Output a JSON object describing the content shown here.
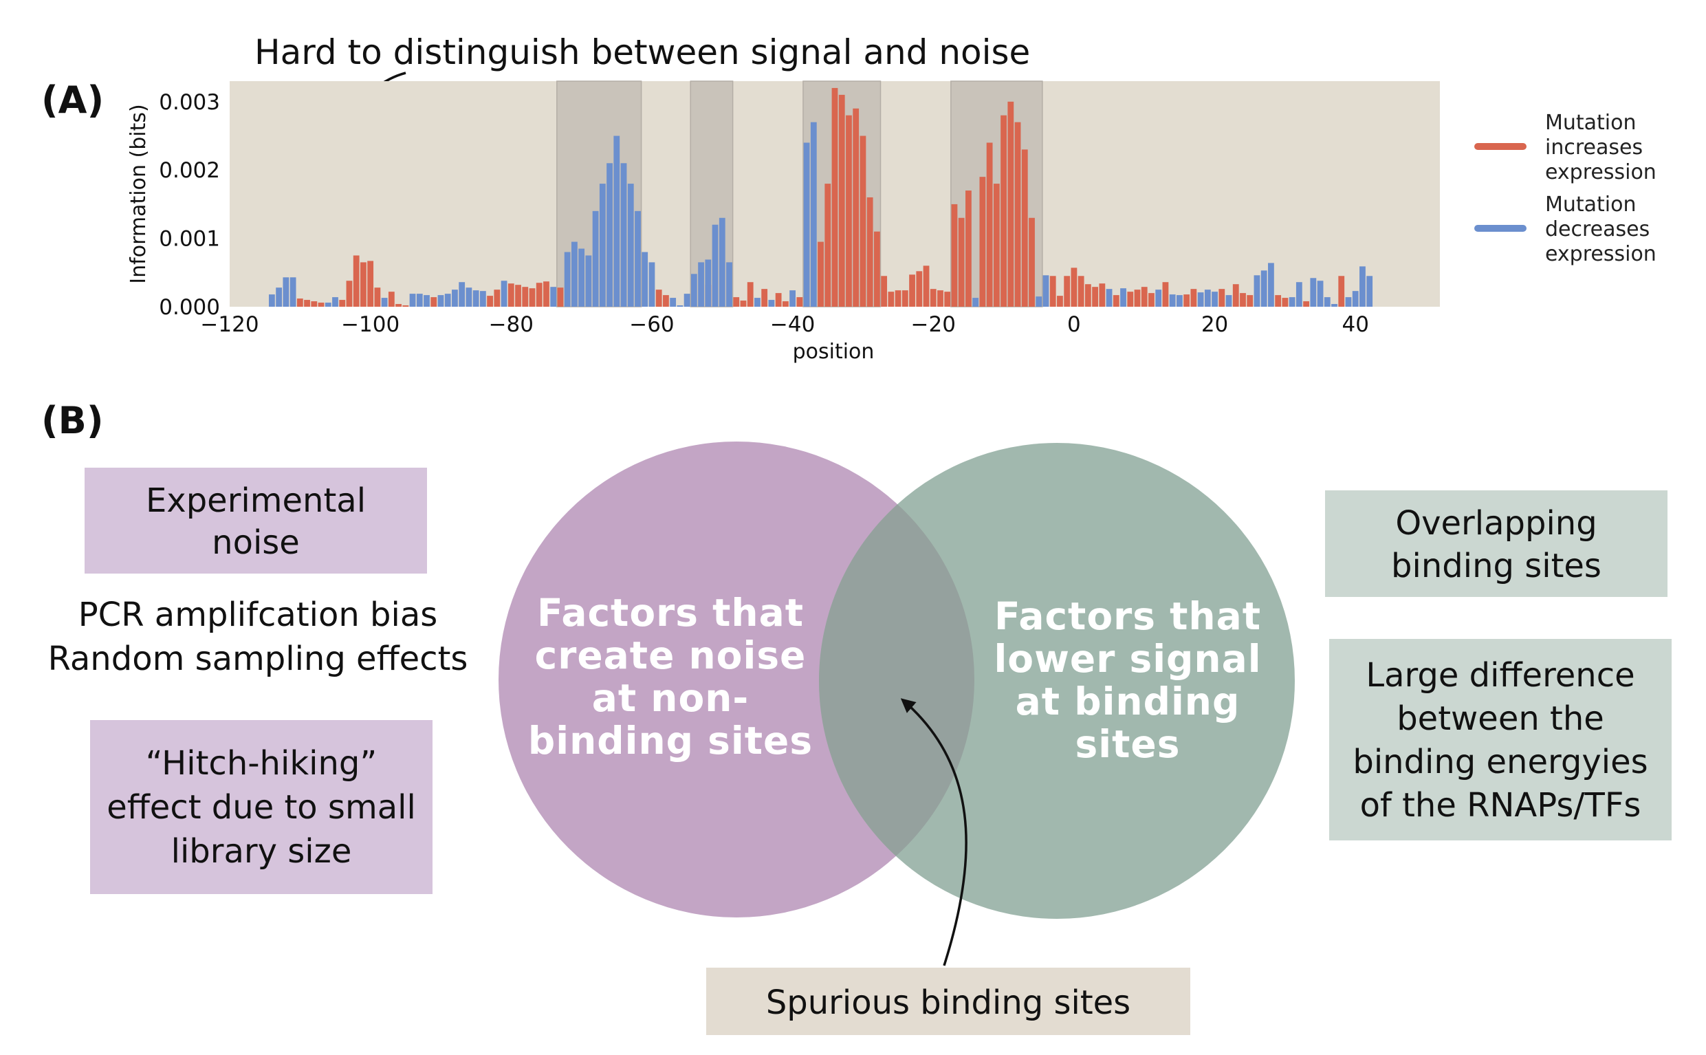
{
  "colors": {
    "increase": "#d9664f",
    "decrease": "#6b8fce",
    "plot_bg": "#e3ddd1",
    "highlight": "#c9c3ba",
    "noise_circle": "#c3a5c5",
    "signal_circle": "#a1b8ae",
    "overlap": "#95a19e",
    "noise_box": "#d6c4dc",
    "signal_box": "#cbd7d1",
    "spurious_box": "#e3dcd1"
  },
  "panel_a": {
    "label": "(A)",
    "annotation": "Hard to distinguish between signal and noise"
  },
  "chart_data": {
    "type": "bar",
    "xlabel": "position",
    "ylabel": "Information (bits)",
    "xlim": [
      -120,
      52
    ],
    "ylim": [
      0,
      0.0033
    ],
    "xticks": [
      -120,
      -100,
      -80,
      -60,
      -40,
      -20,
      0,
      20,
      40
    ],
    "xtick_labels": [
      "−120",
      "−100",
      "−80",
      "−60",
      "−40",
      "−20",
      "0",
      "20",
      "40"
    ],
    "yticks": [
      0.0,
      0.001,
      0.002,
      0.003
    ],
    "ytick_labels": [
      "0.000",
      "0.001",
      "0.002",
      "0.003"
    ],
    "highlighted_regions": [
      [
        -73,
        -62
      ],
      [
        -54,
        -49
      ],
      [
        -38,
        -28
      ],
      [
        -17,
        -5
      ]
    ],
    "legend": {
      "placement": "right",
      "entries": [
        {
          "label": [
            "Mutation",
            "increases",
            "expression"
          ],
          "color": "#d9664f"
        },
        {
          "label": [
            "Mutation",
            "decreases",
            "expression"
          ],
          "color": "#6b8fce"
        }
      ]
    },
    "series": [
      {
        "name": "Mutation increases expression",
        "color": "#d9664f",
        "x": [
          -110,
          -109,
          -108,
          -107,
          -104,
          -103,
          -102,
          -101,
          -100,
          -99,
          -97,
          -96,
          -95,
          -91,
          -83,
          -82,
          -80,
          -79,
          -78,
          -77,
          -76,
          -75,
          -73,
          -59,
          -58,
          -52,
          -48,
          -47,
          -46,
          -44,
          -42,
          -41,
          -39,
          -36,
          -35,
          -34,
          -33,
          -32,
          -31,
          -30,
          -29,
          -28,
          -27,
          -26,
          -25,
          -24,
          -23,
          -22,
          -21,
          -20,
          -19,
          -18,
          -17,
          -16,
          -15,
          -13,
          -12,
          -11,
          -10,
          -9,
          -8,
          -7,
          -6,
          -3,
          -2,
          -1,
          0,
          1,
          2,
          3,
          4,
          6,
          8,
          9,
          10,
          11,
          13,
          16,
          17,
          21,
          23,
          24,
          25,
          29,
          30,
          33,
          38
        ],
        "values": [
          0.00012,
          0.0001,
          8e-05,
          6e-05,
          0.0001,
          0.00038,
          0.00075,
          0.00065,
          0.00067,
          0.00028,
          0.00022,
          4e-05,
          2e-05,
          0.00014,
          0.00016,
          0.00025,
          0.00034,
          0.00032,
          0.00029,
          0.00027,
          0.00035,
          0.00037,
          0.00028,
          0.00025,
          0.00017,
          0.00032,
          0.00014,
          9e-05,
          0.00036,
          0.00026,
          0.0002,
          8e-05,
          0.00014,
          0.00095,
          0.0018,
          0.0032,
          0.0031,
          0.0028,
          0.0029,
          0.0025,
          0.0016,
          0.0011,
          0.00045,
          0.00022,
          0.00024,
          0.00024,
          0.00047,
          0.00052,
          0.0006,
          0.00026,
          0.00024,
          0.00022,
          0.0015,
          0.0013,
          0.0017,
          0.0019,
          0.0024,
          0.0018,
          0.0028,
          0.003,
          0.0027,
          0.0023,
          0.0013,
          0.00045,
          0.00016,
          0.00045,
          0.00057,
          0.00045,
          0.00033,
          0.00029,
          0.00034,
          0.00017,
          0.00022,
          0.00025,
          0.00029,
          0.0002,
          0.00036,
          0.00018,
          0.00026,
          0.00026,
          0.00033,
          0.0002,
          0.00017,
          0.00017,
          0.00013,
          8e-05,
          0.00045
        ]
      },
      {
        "name": "Mutation decreases expression",
        "color": "#6b8fce",
        "x": [
          -114,
          -113,
          -112,
          -111,
          -106,
          -105,
          -98,
          -94,
          -93,
          -92,
          -90,
          -89,
          -88,
          -87,
          -86,
          -85,
          -84,
          -81,
          -74,
          -72,
          -71,
          -70,
          -69,
          -68,
          -67,
          -66,
          -65,
          -64,
          -63,
          -62,
          -61,
          -60,
          -57,
          -56,
          -55,
          -54,
          -53,
          -52,
          -51,
          -50,
          -49,
          -45,
          -43,
          -40,
          -38,
          -37,
          -14,
          -5,
          -4,
          5,
          7,
          12,
          14,
          15,
          18,
          19,
          20,
          22,
          26,
          27,
          28,
          31,
          32,
          34,
          35,
          36,
          37,
          39,
          40,
          41,
          42
        ],
        "values": [
          0.00018,
          0.00028,
          0.00043,
          0.00043,
          6e-05,
          0.00014,
          0.00013,
          0.00019,
          0.00019,
          0.00017,
          0.00017,
          0.00019,
          0.00025,
          0.00036,
          0.00028,
          0.00024,
          0.00023,
          0.00038,
          0.00029,
          0.0008,
          0.00095,
          0.00085,
          0.00075,
          0.0014,
          0.0018,
          0.0021,
          0.0025,
          0.0021,
          0.0018,
          0.0014,
          0.0008,
          0.00065,
          0.00013,
          2e-05,
          0.00019,
          0.00048,
          0.00065,
          0.00069,
          0.0012,
          0.0013,
          0.00065,
          0.00013,
          0.0001,
          0.00024,
          0.0024,
          0.0027,
          0.00013,
          0.00015,
          0.00046,
          0.00026,
          0.00027,
          0.00025,
          0.00018,
          0.00017,
          0.00021,
          0.00025,
          0.00022,
          0.00017,
          0.00046,
          0.00053,
          0.00064,
          0.00014,
          0.00036,
          0.00042,
          0.00038,
          0.00014,
          4e-05,
          0.00014,
          0.00023,
          0.00059,
          0.00045
        ]
      }
    ]
  },
  "panel_b": {
    "label": "(B)",
    "noise_circle_lines": [
      "Factors that",
      "create noise",
      "at non-",
      "binding sites"
    ],
    "signal_circle_lines": [
      "Factors that",
      "lower signal",
      "at binding",
      "sites"
    ],
    "experimental_noise_lines": [
      "Experimental",
      "noise"
    ],
    "noise_list_lines": [
      "PCR amplifcation bias",
      "Random sampling effects"
    ],
    "hitchhiking_lines": [
      "“Hitch-hiking”",
      "effect due to small",
      "library size"
    ],
    "overlapping_lines": [
      "Overlapping",
      "binding sites"
    ],
    "large_difference_lines": [
      "Large difference",
      "between the",
      "binding energyies",
      "of the RNAPs/TFs"
    ],
    "spurious_label": "Spurious binding sites"
  }
}
